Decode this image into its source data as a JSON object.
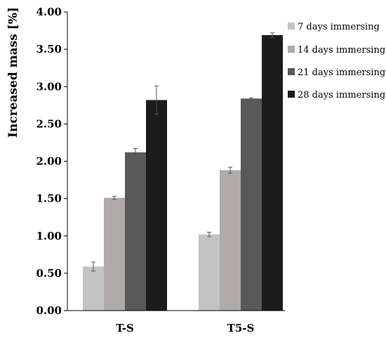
{
  "chart_data": {
    "type": "bar",
    "title": "",
    "xlabel": "",
    "ylabel": "Increased mass [%]",
    "ylim": [
      0,
      4
    ],
    "yticks": [
      "0.00",
      "0.50",
      "1.00",
      "1.50",
      "2.00",
      "2.50",
      "3.00",
      "3.50",
      "4.00"
    ],
    "categories": [
      "T-S",
      "T5-S"
    ],
    "series": [
      {
        "name": "7 days immersing",
        "values": [
          0.59,
          1.02
        ],
        "errors": [
          0.06,
          0.03
        ],
        "color": "#c3c3c3"
      },
      {
        "name": "14 days immersing",
        "values": [
          1.51,
          1.88
        ],
        "errors": [
          0.02,
          0.04
        ],
        "color": "#b0aaa9"
      },
      {
        "name": "21 days immersing",
        "values": [
          2.12,
          2.84
        ],
        "errors": [
          0.05,
          0.01
        ],
        "color": "#595959"
      },
      {
        "name": "28 days immersing",
        "values": [
          2.82,
          3.69
        ],
        "errors": [
          0.19,
          0.03
        ],
        "color": "#1c1c1c"
      }
    ],
    "legend_position": "right",
    "grid": false,
    "error_bars": true
  }
}
